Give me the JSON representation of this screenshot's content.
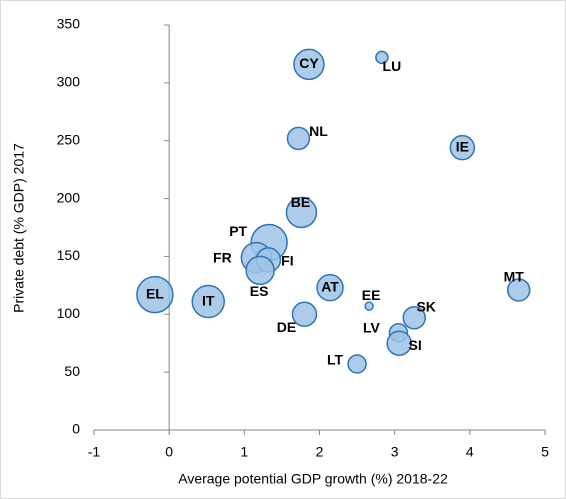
{
  "chart_data": {
    "type": "bubble",
    "x_label": "Average potential GDP growth (%) 2018-22",
    "y_label": "Private debt (% GDP) 2017",
    "xlim": [
      -1,
      5
    ],
    "xticks": [
      -1,
      0,
      1,
      2,
      3,
      4,
      5
    ],
    "ylim": [
      0,
      350
    ],
    "yticks": [
      0,
      50,
      100,
      150,
      200,
      250,
      300,
      350
    ],
    "series": [
      {
        "color": "#9dc3e6",
        "labels": [
          "CY",
          "LU",
          "NL",
          "IE",
          "BE",
          "PT",
          "FR",
          "FI",
          "ES",
          "MT",
          "EL",
          "IT",
          "AT",
          "EE",
          "SK",
          "DE",
          "LV",
          "SI",
          "LT"
        ],
        "x": [
          1.86,
          2.83,
          1.72,
          3.9,
          1.76,
          1.33,
          1.16,
          1.32,
          1.21,
          4.65,
          -0.19,
          0.52,
          2.14,
          2.66,
          3.26,
          1.8,
          3.05,
          3.06,
          2.5
        ],
        "values": [
          316,
          322,
          252,
          244,
          188,
          162,
          149,
          147,
          138,
          121,
          117,
          111,
          123,
          107,
          97,
          100,
          84,
          75,
          57
        ],
        "sizes": [
          15,
          6,
          11,
          12,
          15,
          18,
          15,
          12,
          14,
          11,
          18,
          16,
          13,
          4,
          11,
          12,
          9,
          12,
          9
        ]
      }
    ]
  }
}
